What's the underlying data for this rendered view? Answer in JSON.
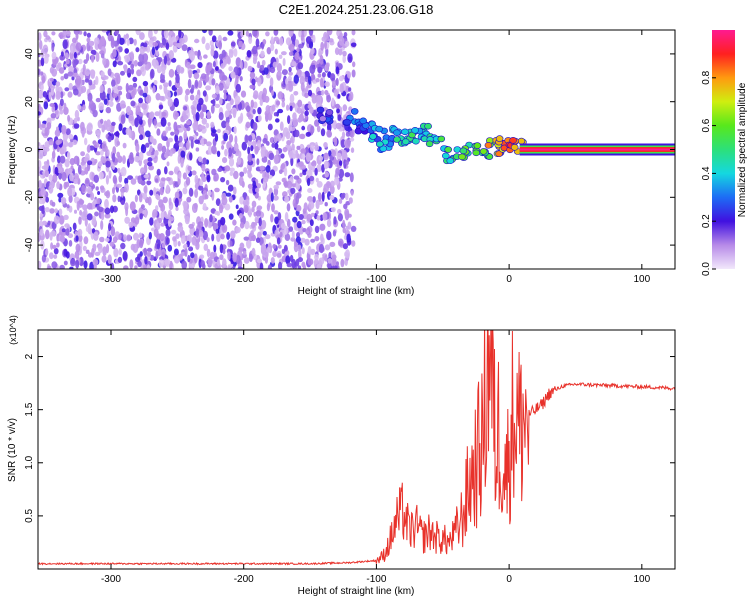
{
  "title": "C2E1.2024.251.23.06.G18",
  "chart_data": [
    {
      "type": "heatmap",
      "xlabel": "Height of straight line (km)",
      "ylabel": "Frequency (Hz)",
      "xlim": [
        -355,
        125
      ],
      "ylim": [
        -50,
        50
      ],
      "x_ticks": [
        -300,
        -200,
        -100,
        0,
        100
      ],
      "y_ticks": [
        -40,
        -20,
        0,
        20,
        40
      ],
      "colorbar": {
        "label": "Normalized spectral amplitude",
        "range": [
          0,
          1
        ],
        "ticks": [
          "0.0",
          "0.2",
          "0.4",
          "0.6",
          "0.8"
        ]
      },
      "noise_region": {
        "x_range": [
          -355,
          -117
        ],
        "amplitude": "low (0.05–0.25)"
      },
      "signal_ridge": [
        {
          "x": -140,
          "y": 14,
          "amp": 0.2
        },
        {
          "x": -118,
          "y": 13,
          "amp": 0.35
        },
        {
          "x": -108,
          "y": 10,
          "amp": 0.3
        },
        {
          "x": -100,
          "y": 6,
          "amp": 0.35
        },
        {
          "x": -92,
          "y": 2,
          "amp": 0.4
        },
        {
          "x": -82,
          "y": 6,
          "amp": 0.45
        },
        {
          "x": -75,
          "y": 5,
          "amp": 0.5
        },
        {
          "x": -65,
          "y": 7,
          "amp": 0.45
        },
        {
          "x": -55,
          "y": 4,
          "amp": 0.5
        },
        {
          "x": -45,
          "y": -2,
          "amp": 0.5
        },
        {
          "x": -30,
          "y": -1,
          "amp": 0.55
        },
        {
          "x": -20,
          "y": 0,
          "amp": 0.6
        },
        {
          "x": -10,
          "y": 1,
          "amp": 0.75
        },
        {
          "x": -3,
          "y": 3,
          "amp": 0.8
        },
        {
          "x": 5,
          "y": 1,
          "amp": 0.85
        }
      ],
      "steady_line": {
        "x_range": [
          8,
          125
        ],
        "y": 0,
        "amp": 1.0
      }
    },
    {
      "type": "line",
      "xlabel": "Height of straight line (km)",
      "ylabel": "SNR (10 * v/v)",
      "y_multiplier": "(x10^4)",
      "xlim": [
        -355,
        125
      ],
      "ylim": [
        0,
        2.25
      ],
      "x_ticks": [
        -300,
        -200,
        -100,
        0,
        100
      ],
      "y_ticks": [
        0.5,
        1.0,
        1.5,
        2.0
      ],
      "color": "#e8312a",
      "series": [
        {
          "x": [
            -355,
            -300,
            -250,
            -200,
            -150,
            -120,
            -100,
            -95,
            -90,
            -85,
            -80,
            -75,
            -70,
            -65,
            -60,
            -55,
            -50,
            -45,
            -40,
            -35,
            -30,
            -25,
            -20,
            -18,
            -15,
            -12,
            -10,
            -8,
            -6,
            -4,
            -2,
            0,
            2,
            5,
            8,
            10,
            15,
            20,
            25,
            30,
            40,
            50,
            70,
            90,
            110,
            125
          ],
          "y": [
            0.05,
            0.05,
            0.05,
            0.05,
            0.05,
            0.06,
            0.08,
            0.12,
            0.25,
            0.45,
            0.55,
            0.35,
            0.4,
            0.3,
            0.35,
            0.3,
            0.28,
            0.25,
            0.35,
            0.5,
            0.8,
            1.0,
            1.2,
            1.6,
            2.2,
            1.5,
            1.1,
            1.3,
            1.2,
            1.0,
            0.9,
            1.1,
            1.4,
            1.5,
            1.3,
            1.4,
            1.45,
            1.5,
            1.55,
            1.65,
            1.72,
            1.74,
            1.73,
            1.72,
            1.71,
            1.7
          ]
        }
      ]
    }
  ]
}
